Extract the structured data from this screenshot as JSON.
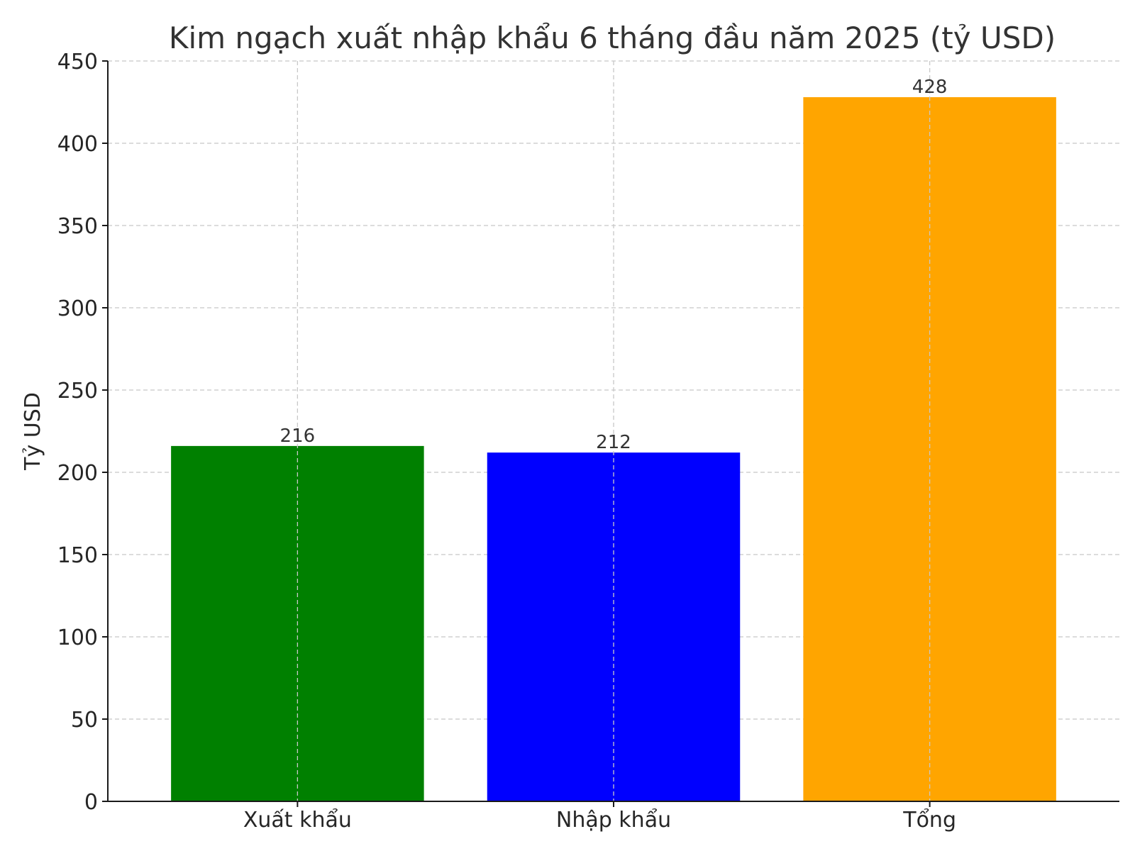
{
  "chart_data": {
    "type": "bar",
    "title": "Kim ngạch xuất nhập khẩu 6 tháng đầu năm 2025 (tỷ USD)",
    "xlabel": "",
    "ylabel": "Tỷ USD",
    "categories": [
      "Xuất khẩu",
      "Nhập khẩu",
      "Tổng"
    ],
    "values": [
      216,
      212,
      428
    ],
    "colors": [
      "#008000",
      "#0000ff",
      "#ffa500"
    ],
    "ylim": [
      0,
      450
    ],
    "yticks": [
      0,
      50,
      100,
      150,
      200,
      250,
      300,
      350,
      400,
      450
    ],
    "grid": true,
    "data_labels": true,
    "legend": "none"
  }
}
